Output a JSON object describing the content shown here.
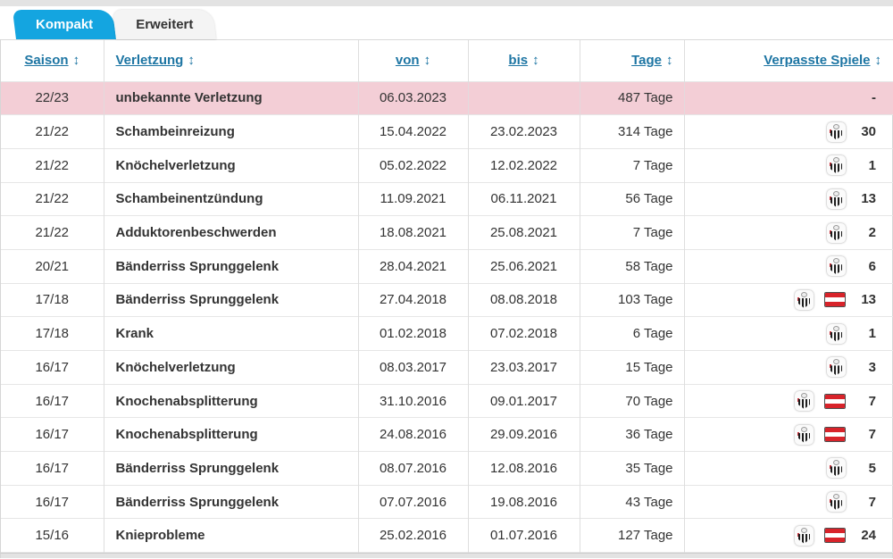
{
  "colors": {
    "accent": "#14a5e0",
    "link_blue": "#1d75a3",
    "highlight_pink": "#f3ced6",
    "flag_red": "#d8232a",
    "text": "#333333"
  },
  "tabs": [
    {
      "label": "Kompakt",
      "active": true
    },
    {
      "label": "Erweitert",
      "active": false
    }
  ],
  "table": {
    "sort_icon": "↕",
    "columns": [
      {
        "label": "Saison"
      },
      {
        "label": "Verletzung"
      },
      {
        "label": "von"
      },
      {
        "label": "bis"
      },
      {
        "label": "Tage"
      },
      {
        "label": "Verpasste Spiele"
      }
    ],
    "rows": [
      {
        "saison": "22/23",
        "verletzung": "unbekannte Verletzung",
        "von": "06.03.2023",
        "bis": "",
        "tage": "487 Tage",
        "icons": [],
        "verpasste": "-",
        "highlight": true
      },
      {
        "saison": "21/22",
        "verletzung": "Schambeinreizung",
        "von": "15.04.2022",
        "bis": "23.02.2023",
        "tage": "314 Tage",
        "icons": [
          "club"
        ],
        "verpasste": "30",
        "highlight": false
      },
      {
        "saison": "21/22",
        "verletzung": "Knöchelverletzung",
        "von": "05.02.2022",
        "bis": "12.02.2022",
        "tage": "7 Tage",
        "icons": [
          "club"
        ],
        "verpasste": "1",
        "highlight": false
      },
      {
        "saison": "21/22",
        "verletzung": "Schambeinentzündung",
        "von": "11.09.2021",
        "bis": "06.11.2021",
        "tage": "56 Tage",
        "icons": [
          "club"
        ],
        "verpasste": "13",
        "highlight": false
      },
      {
        "saison": "21/22",
        "verletzung": "Adduktorenbeschwerden",
        "von": "18.08.2021",
        "bis": "25.08.2021",
        "tage": "7 Tage",
        "icons": [
          "club"
        ],
        "verpasste": "2",
        "highlight": false
      },
      {
        "saison": "20/21",
        "verletzung": "Bänderriss Sprunggelenk",
        "von": "28.04.2021",
        "bis": "25.06.2021",
        "tage": "58 Tage",
        "icons": [
          "club"
        ],
        "verpasste": "6",
        "highlight": false
      },
      {
        "saison": "17/18",
        "verletzung": "Bänderriss Sprunggelenk",
        "von": "27.04.2018",
        "bis": "08.08.2018",
        "tage": "103 Tage",
        "icons": [
          "club",
          "flag"
        ],
        "verpasste": "13",
        "highlight": false
      },
      {
        "saison": "17/18",
        "verletzung": "Krank",
        "von": "01.02.2018",
        "bis": "07.02.2018",
        "tage": "6 Tage",
        "icons": [
          "club"
        ],
        "verpasste": "1",
        "highlight": false
      },
      {
        "saison": "16/17",
        "verletzung": "Knöchelverletzung",
        "von": "08.03.2017",
        "bis": "23.03.2017",
        "tage": "15 Tage",
        "icons": [
          "club"
        ],
        "verpasste": "3",
        "highlight": false
      },
      {
        "saison": "16/17",
        "verletzung": "Knochenabsplitterung",
        "von": "31.10.2016",
        "bis": "09.01.2017",
        "tage": "70 Tage",
        "icons": [
          "club",
          "flag"
        ],
        "verpasste": "7",
        "highlight": false
      },
      {
        "saison": "16/17",
        "verletzung": "Knochenabsplitterung",
        "von": "24.08.2016",
        "bis": "29.09.2016",
        "tage": "36 Tage",
        "icons": [
          "club",
          "flag"
        ],
        "verpasste": "7",
        "highlight": false
      },
      {
        "saison": "16/17",
        "verletzung": "Bänderriss Sprunggelenk",
        "von": "08.07.2016",
        "bis": "12.08.2016",
        "tage": "35 Tage",
        "icons": [
          "club"
        ],
        "verpasste": "5",
        "highlight": false
      },
      {
        "saison": "16/17",
        "verletzung": "Bänderriss Sprunggelenk",
        "von": "07.07.2016",
        "bis": "19.08.2016",
        "tage": "43 Tage",
        "icons": [
          "club"
        ],
        "verpasste": "7",
        "highlight": false
      },
      {
        "saison": "15/16",
        "verletzung": "Knieprobleme",
        "von": "25.02.2016",
        "bis": "01.07.2016",
        "tage": "127 Tage",
        "icons": [
          "club",
          "flag"
        ],
        "verpasste": "24",
        "highlight": false
      }
    ]
  }
}
